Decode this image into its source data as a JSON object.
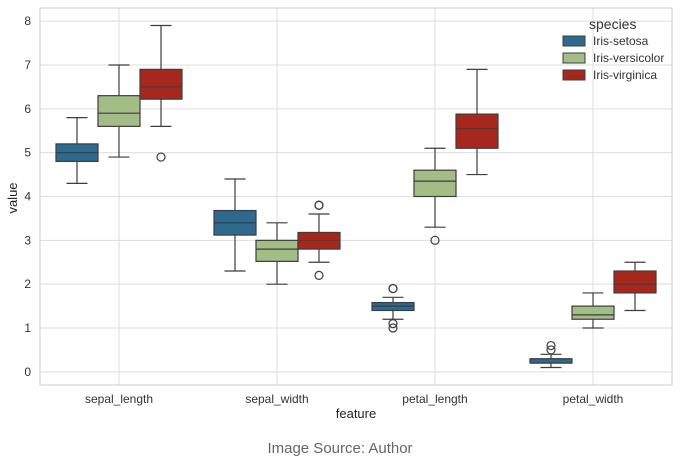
{
  "chart_data": {
    "type": "box",
    "xlabel": "feature",
    "ylabel": "value",
    "ylim": [
      -0.3,
      8.3
    ],
    "yticks": [
      0,
      1,
      2,
      3,
      4,
      5,
      6,
      7,
      8
    ],
    "grid": true,
    "legend": {
      "title": "species",
      "position": "top-right"
    },
    "categories": [
      "sepal_length",
      "sepal_width",
      "petal_length",
      "petal_width"
    ],
    "series": [
      {
        "name": "Iris-setosa",
        "color": "#2d6a8e",
        "boxes": [
          {
            "whisker_low": 4.3,
            "q1": 4.8,
            "median": 5.0,
            "q3": 5.2,
            "whisker_high": 5.8,
            "outliers": []
          },
          {
            "whisker_low": 2.3,
            "q1": 3.12,
            "median": 3.4,
            "q3": 3.68,
            "whisker_high": 4.4,
            "outliers": []
          },
          {
            "whisker_low": 1.2,
            "q1": 1.4,
            "median": 1.5,
            "q3": 1.58,
            "whisker_high": 1.7,
            "outliers": [
              1.0,
              1.1,
              1.9,
              1.9
            ]
          },
          {
            "whisker_low": 0.1,
            "q1": 0.2,
            "median": 0.2,
            "q3": 0.3,
            "whisker_high": 0.4,
            "outliers": [
              0.5,
              0.6
            ]
          }
        ]
      },
      {
        "name": "Iris-versicolor",
        "color": "#a3bd86",
        "boxes": [
          {
            "whisker_low": 4.9,
            "q1": 5.6,
            "median": 5.9,
            "q3": 6.3,
            "whisker_high": 7.0,
            "outliers": []
          },
          {
            "whisker_low": 2.0,
            "q1": 2.52,
            "median": 2.8,
            "q3": 3.0,
            "whisker_high": 3.4,
            "outliers": []
          },
          {
            "whisker_low": 3.3,
            "q1": 4.0,
            "median": 4.35,
            "q3": 4.6,
            "whisker_high": 5.1,
            "outliers": [
              3.0
            ]
          },
          {
            "whisker_low": 1.0,
            "q1": 1.2,
            "median": 1.3,
            "q3": 1.5,
            "whisker_high": 1.8,
            "outliers": []
          }
        ]
      },
      {
        "name": "Iris-virginica",
        "color": "#a8271d",
        "boxes": [
          {
            "whisker_low": 5.6,
            "q1": 6.22,
            "median": 6.5,
            "q3": 6.9,
            "whisker_high": 7.9,
            "outliers": [
              4.9
            ]
          },
          {
            "whisker_low": 2.5,
            "q1": 2.8,
            "median": 3.0,
            "q3": 3.18,
            "whisker_high": 3.6,
            "outliers": [
              2.2,
              3.8,
              3.8
            ]
          },
          {
            "whisker_low": 4.5,
            "q1": 5.1,
            "median": 5.55,
            "q3": 5.88,
            "whisker_high": 6.9,
            "outliers": []
          },
          {
            "whisker_low": 1.4,
            "q1": 1.8,
            "median": 2.0,
            "q3": 2.3,
            "whisker_high": 2.5,
            "outliers": []
          }
        ]
      }
    ]
  },
  "caption": "Image Source: Author"
}
